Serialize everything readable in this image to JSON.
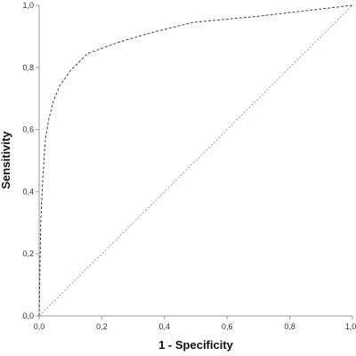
{
  "chart_data": {
    "type": "line",
    "title": "",
    "xlabel": "1 - Specificity",
    "ylabel": "Sensitivity",
    "xlim": [
      0,
      1
    ],
    "ylim": [
      0,
      1
    ],
    "grid": false,
    "x_ticks": [
      "0,0",
      "0,2",
      "0,4",
      "0,6",
      "0,8",
      "1,0"
    ],
    "y_ticks": [
      "0,0",
      "0,2",
      "0,4",
      "0,6",
      "0,8",
      "1,0"
    ],
    "series": [
      {
        "style": "dashed",
        "color": "#444444",
        "x": [
          0.0,
          0.005,
          0.012,
          0.02,
          0.03,
          0.045,
          0.065,
          0.1,
          0.155,
          0.25,
          0.35,
          0.49,
          0.7,
          1.0
        ],
        "y": [
          0.0,
          0.3,
          0.45,
          0.57,
          0.63,
          0.69,
          0.74,
          0.79,
          0.845,
          0.88,
          0.91,
          0.945,
          0.965,
          1.0
        ]
      },
      {
        "style": "reference-diagonal",
        "color": "#888888",
        "x": [
          0.0,
          1.0
        ],
        "y": [
          0.0,
          1.0
        ]
      }
    ]
  }
}
